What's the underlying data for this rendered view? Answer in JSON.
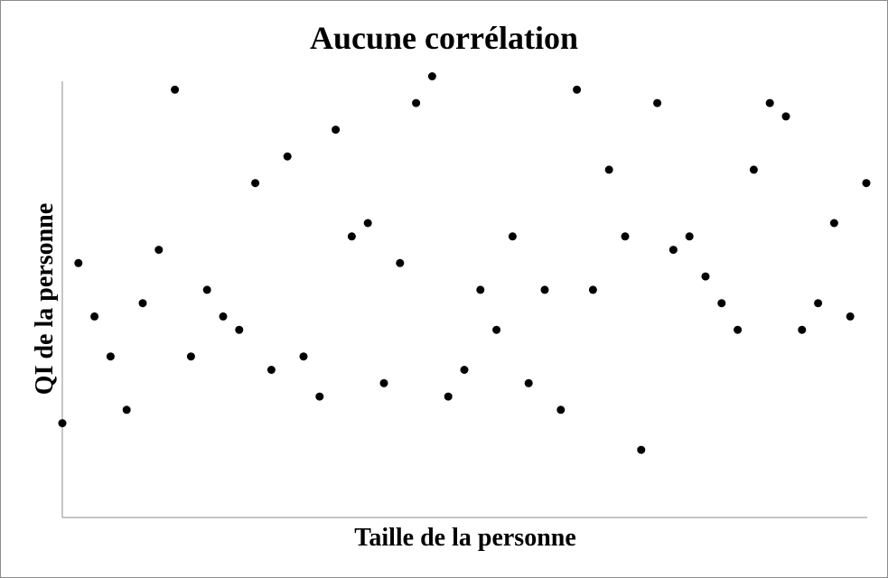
{
  "chart_data": {
    "type": "scatter",
    "title": "Aucune corrélation",
    "xlabel": "Taille de la personne",
    "ylabel": "QI de la personne",
    "grid": false,
    "legend": "none",
    "point_color": "#000000",
    "axis_color": "#8c8c8c",
    "xlim": [
      0,
      50
    ],
    "ylim": [
      0,
      35
    ],
    "series": [
      {
        "x": [
          0,
          1,
          2,
          3,
          4,
          5,
          6,
          7,
          8,
          9,
          10,
          11,
          12,
          13,
          14,
          15,
          16,
          17,
          18,
          19,
          20,
          21,
          22,
          23,
          24,
          25,
          26,
          27,
          28,
          29,
          30,
          31,
          32,
          33,
          34,
          35,
          36,
          37,
          38,
          39,
          40,
          41,
          42,
          43,
          44,
          45,
          46,
          47,
          48,
          49,
          50
        ],
        "y": [
          7,
          19,
          15,
          12,
          8,
          16,
          20,
          32,
          12,
          17,
          15,
          14,
          25,
          11,
          27,
          12,
          9,
          29,
          21,
          22,
          10,
          19,
          31,
          33,
          9,
          11,
          17,
          14,
          21,
          10,
          17,
          8,
          32,
          17,
          26,
          21,
          5,
          31,
          20,
          21,
          18,
          16,
          14,
          26,
          31,
          30,
          14,
          16,
          22,
          15,
          25
        ]
      }
    ]
  }
}
